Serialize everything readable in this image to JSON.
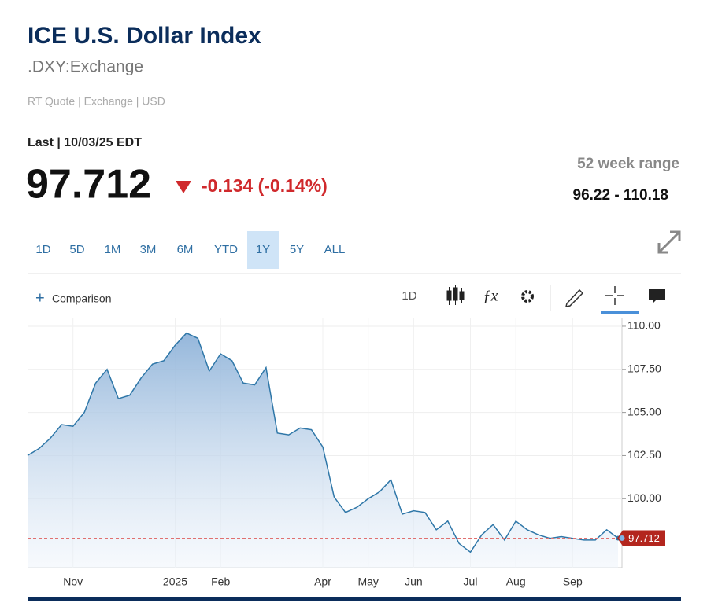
{
  "header": {
    "title": "ICE U.S. Dollar Index",
    "symbol": ".DXY:Exchange",
    "quote_info": "RT Quote | Exchange | USD",
    "last_label": "Last | 10/03/25 EDT",
    "price": "97.712",
    "change": "-0.134 (-0.14%)",
    "range_label": "52 week range",
    "range_value": "96.22 - 110.18"
  },
  "ranges": [
    "1D",
    "5D",
    "1M",
    "3M",
    "6M",
    "YTD",
    "1Y",
    "5Y",
    "ALL"
  ],
  "active_range": "1Y",
  "toolbar": {
    "comparison": "Comparison",
    "interval": "1D"
  },
  "chart_data": {
    "type": "area",
    "categories": [
      null,
      null,
      null,
      null,
      "Nov",
      null,
      null,
      null,
      null,
      null,
      null,
      null,
      null,
      "2025",
      null,
      null,
      null,
      "Feb",
      null,
      null,
      null,
      null,
      null,
      null,
      null,
      null,
      "Apr",
      null,
      null,
      null,
      "May",
      null,
      null,
      null,
      "Jun",
      null,
      null,
      null,
      null,
      "Jul",
      null,
      null,
      null,
      "Aug",
      null,
      null,
      null,
      null,
      "Sep",
      null,
      null,
      null,
      null
    ],
    "series": [
      {
        "name": ".DXY",
        "color": "#2f77a8",
        "values": [
          102.5,
          102.9,
          103.5,
          104.3,
          104.2,
          105.0,
          106.7,
          107.5,
          105.8,
          106.0,
          107.0,
          107.8,
          108.0,
          108.9,
          109.6,
          109.3,
          107.4,
          108.4,
          108.0,
          106.7,
          106.6,
          107.6,
          103.8,
          103.7,
          104.1,
          104.0,
          103.0,
          100.1,
          99.2,
          99.5,
          100.0,
          100.4,
          101.1,
          99.1,
          99.3,
          99.2,
          98.2,
          98.7,
          97.4,
          96.9,
          97.9,
          98.5,
          97.6,
          98.7,
          98.2,
          97.9,
          97.7,
          97.8,
          97.7,
          97.6,
          97.6,
          98.2,
          97.712
        ],
        "value_labels": {
          "52": "97.712"
        }
      }
    ],
    "ylim": [
      96,
      110.5
    ],
    "yticks": [
      {
        "value": 100,
        "label": "100.00"
      },
      {
        "value": 102.5,
        "label": "102.50"
      },
      {
        "value": 105,
        "label": "105.00"
      },
      {
        "value": 107.5,
        "label": "107.50"
      },
      {
        "value": 110,
        "label": "110.00"
      }
    ],
    "grid": true
  }
}
